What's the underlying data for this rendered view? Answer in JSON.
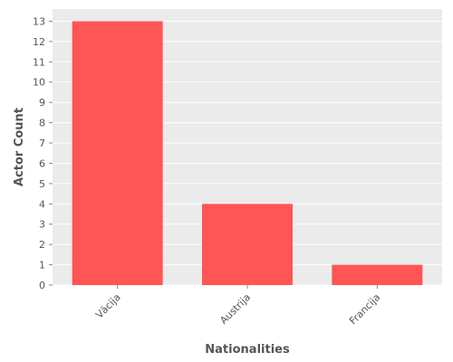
{
  "chart_data": {
    "type": "bar",
    "categories": [
      "Vācija",
      "Austrija",
      "Francija"
    ],
    "values": [
      13,
      4,
      1
    ],
    "xlabel": "Nationalities",
    "ylabel": "Actor Count",
    "ylim": [
      0,
      13.6
    ],
    "yticks": [
      0,
      1,
      2,
      3,
      4,
      5,
      6,
      7,
      8,
      9,
      10,
      11,
      12,
      13
    ],
    "grid": true,
    "legend": "none",
    "colors": {
      "bar": "#ff5555",
      "plot_background": "#ebebeb",
      "grid": "#ffffff",
      "text": "#555555"
    }
  }
}
